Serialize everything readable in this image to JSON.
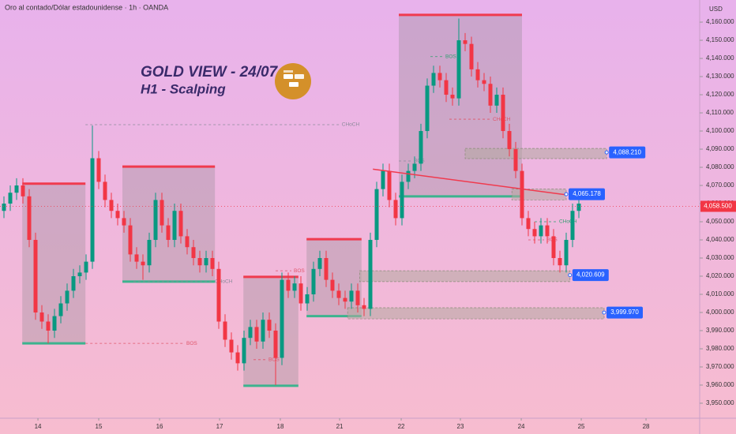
{
  "chart_data": {
    "type": "candlestick",
    "title": "Oro al contado/Dólar estadounidense · 1h · OANDA",
    "currency": "USD",
    "up_color": "#089981",
    "down_color": "#f23645",
    "x": [
      0,
      1,
      2,
      3,
      4,
      5,
      6,
      7,
      8,
      9,
      10,
      11,
      12,
      13,
      14,
      15,
      16,
      17,
      18,
      19,
      20,
      21,
      22,
      23,
      24,
      25,
      26,
      27,
      28,
      29,
      30,
      31,
      32,
      33,
      34,
      35,
      36,
      37,
      38,
      39,
      40,
      41,
      42,
      43,
      44,
      45,
      46,
      47,
      48,
      49,
      50,
      51,
      52,
      53,
      54,
      55,
      56,
      57,
      58,
      59,
      60,
      61,
      62,
      63,
      64,
      65,
      66,
      67,
      68,
      69,
      70,
      71,
      72,
      73,
      74,
      75,
      76,
      77,
      78,
      79,
      80,
      81,
      82,
      83,
      84,
      85,
      86,
      87,
      88,
      89,
      90,
      91
    ],
    "open": [
      4056,
      4060,
      4066,
      4070,
      4064,
      4040,
      4000,
      3995,
      3990,
      3998,
      4005,
      4012,
      4020,
      4022,
      4028,
      4085,
      4072,
      4062,
      4056,
      4052,
      4048,
      4032,
      4028,
      4026,
      4040,
      4062,
      4048,
      4040,
      4056,
      4042,
      4036,
      4030,
      4026,
      4030,
      4024,
      3995,
      3985,
      3978,
      3972,
      3986,
      3992,
      3984,
      3996,
      3990,
      3975,
      4018,
      4012,
      4016,
      4005,
      4010,
      4024,
      4030,
      4018,
      4012,
      4008,
      4006,
      4012,
      4004,
      4002,
      4040,
      4068,
      4078,
      4062,
      4052,
      4072,
      4078,
      4082,
      4100,
      4125,
      4132,
      4128,
      4120,
      4118,
      4150,
      4148,
      4134,
      4128,
      4126,
      4114,
      4120,
      4100,
      4090,
      4078,
      4052,
      4046,
      4042,
      4048,
      4042,
      4030,
      4026,
      4040,
      4056
    ],
    "high": [
      4064,
      4070,
      4074,
      4074,
      4068,
      4044,
      4004,
      3999,
      4002,
      4009,
      4016,
      4024,
      4026,
      4032,
      4103,
      4089,
      4076,
      4066,
      4060,
      4056,
      4052,
      4036,
      4032,
      4044,
      4066,
      4066,
      4052,
      4060,
      4060,
      4046,
      4040,
      4034,
      4034,
      4034,
      4028,
      3999,
      3989,
      3982,
      3990,
      3996,
      3996,
      4000,
      4000,
      3994,
      4022,
      4022,
      4020,
      4020,
      4014,
      4028,
      4034,
      4034,
      4022,
      4016,
      4012,
      4016,
      4016,
      4008,
      4044,
      4072,
      4082,
      4082,
      4066,
      4076,
      4082,
      4086,
      4104,
      4129,
      4136,
      4136,
      4132,
      4124,
      4162,
      4154,
      4152,
      4138,
      4132,
      4130,
      4124,
      4124,
      4104,
      4094,
      4082,
      4056,
      4050,
      4052,
      4052,
      4046,
      4034,
      4044,
      4060,
      4064
    ],
    "low": [
      4052,
      4056,
      4062,
      4060,
      4036,
      3996,
      3991,
      3983,
      3986,
      3994,
      4001,
      4008,
      4016,
      4018,
      4024,
      4068,
      4058,
      4052,
      4048,
      4044,
      4028,
      4024,
      4018,
      4022,
      4036,
      4044,
      4036,
      4036,
      4038,
      4032,
      4026,
      4022,
      4022,
      4020,
      3991,
      3981,
      3974,
      3968,
      3968,
      3982,
      3980,
      3980,
      3986,
      3960,
      3971,
      4008,
      4008,
      4001,
      4001,
      4006,
      4020,
      4014,
      4008,
      4004,
      4002,
      4002,
      4000,
      3998,
      3998,
      4036,
      4064,
      4058,
      4048,
      4048,
      4068,
      4074,
      4078,
      4096,
      4121,
      4124,
      4116,
      4114,
      4114,
      4144,
      4130,
      4124,
      4122,
      4110,
      4110,
      4096,
      4086,
      4074,
      4048,
      4042,
      4038,
      4038,
      4038,
      4026,
      4022,
      4022,
      4036,
      4052
    ],
    "close": [
      4060,
      4066,
      4070,
      4064,
      4040,
      4000,
      3995,
      3990,
      3998,
      4005,
      4012,
      4020,
      4022,
      4028,
      4085,
      4072,
      4062,
      4056,
      4052,
      4048,
      4032,
      4028,
      4026,
      4040,
      4062,
      4048,
      4040,
      4056,
      4042,
      4036,
      4030,
      4026,
      4030,
      4024,
      3995,
      3985,
      3978,
      3972,
      3986,
      3992,
      3984,
      3996,
      3990,
      3975,
      4018,
      4012,
      4016,
      4005,
      4010,
      4024,
      4030,
      4018,
      4012,
      4008,
      4006,
      4012,
      4004,
      4002,
      4040,
      4068,
      4078,
      4062,
      4052,
      4072,
      4078,
      4082,
      4100,
      4125,
      4132,
      4128,
      4120,
      4118,
      4150,
      4148,
      4134,
      4128,
      4126,
      4114,
      4120,
      4100,
      4090,
      4078,
      4052,
      4046,
      4042,
      4048,
      4042,
      4030,
      4026,
      4040,
      4056,
      4060
    ],
    "xlim": [
      -0.625,
      110
    ],
    "ylim": [
      3942.6,
      4172.2
    ],
    "xticks": [
      {
        "value": 5.38,
        "label": "14"
      },
      {
        "value": 15,
        "label": "15"
      },
      {
        "value": 24.63,
        "label": "16"
      },
      {
        "value": 34.13,
        "label": "17"
      },
      {
        "value": 43.75,
        "label": "18"
      },
      {
        "value": 53.13,
        "label": "21"
      },
      {
        "value": 62.88,
        "label": "22"
      },
      {
        "value": 72.25,
        "label": "23"
      },
      {
        "value": 81.88,
        "label": "24"
      },
      {
        "value": 91.38,
        "label": "25"
      },
      {
        "value": 101.63,
        "label": "28"
      }
    ],
    "yticks": [
      {
        "value": 3950,
        "label": "3,950.000"
      },
      {
        "value": 3960,
        "label": "3,960.000"
      },
      {
        "value": 3970,
        "label": "3,970.000"
      },
      {
        "value": 3980,
        "label": "3,980.000"
      },
      {
        "value": 3990,
        "label": "3,990.000"
      },
      {
        "value": 4000,
        "label": "4,000.000"
      },
      {
        "value": 4010,
        "label": "4,010.000"
      },
      {
        "value": 4020,
        "label": "4,020.000"
      },
      {
        "value": 4030,
        "label": "4,030.000"
      },
      {
        "value": 4040,
        "label": "4,040.000"
      },
      {
        "value": 4050,
        "label": "4,050.000"
      },
      {
        "value": 4060,
        "label": "4,060.000"
      },
      {
        "value": 4070,
        "label": "4,070.000"
      },
      {
        "value": 4080,
        "label": "4,080.000"
      },
      {
        "value": 4090,
        "label": "4,090.000"
      },
      {
        "value": 4100,
        "label": "4,100.000"
      },
      {
        "value": 4110,
        "label": "4,110.000"
      },
      {
        "value": 4120,
        "label": "4,120.000"
      },
      {
        "value": 4130,
        "label": "4,130.000"
      },
      {
        "value": 4140,
        "label": "4,140.000"
      },
      {
        "value": 4150,
        "label": "4,150.000"
      },
      {
        "value": 4160,
        "label": "4,160.000"
      }
    ],
    "headline": [
      "GOLD VIEW - 24/07",
      "H1 - Scalping"
    ],
    "boxes": [
      {
        "x": [
          2.9,
          12.9
        ],
        "y": [
          3983,
          4071
        ]
      },
      {
        "x": [
          18.75,
          33.4
        ],
        "y": [
          4017,
          4080.4
        ]
      },
      {
        "x": [
          37.9,
          46.6
        ],
        "y": [
          3959.6,
          4019.6
        ]
      },
      {
        "x": [
          47.9,
          56.6
        ],
        "y": [
          3998,
          4040.4
        ]
      },
      {
        "x": [
          62.5,
          82
        ],
        "y": [
          4064,
          4164
        ]
      }
    ],
    "levels": [
      {
        "value": 4088.21,
        "label": "4,088.210",
        "x": [
          73,
          95.4
        ],
        "band": [
          4084.8,
          4090.4
        ]
      },
      {
        "value": 4065.178,
        "label": "4,065.178",
        "x": [
          80.4,
          89
        ],
        "band": [
          4062,
          4068
        ]
      },
      {
        "value": 4020.609,
        "label": "4,020.609",
        "x": [
          56.3,
          89.6
        ],
        "band": [
          4017,
          4023
        ]
      },
      {
        "value": 3999.97,
        "label": "3,999.970",
        "x": [
          54.4,
          95
        ],
        "band": [
          3996.5,
          4002.6
        ]
      }
    ],
    "markers": [
      {
        "text": "CHoCH",
        "x": [
          12.9,
          53.1
        ],
        "y": 4103.5,
        "color": "#8a8a9a"
      },
      {
        "text": "BOS",
        "x": [
          12.9,
          28.5
        ],
        "y": 3983,
        "color": "#e0556a"
      },
      {
        "text": "CHoCH",
        "x": [
          20.5,
          33
        ],
        "y": 4017,
        "color": "#8a8a9a"
      },
      {
        "text": "BOS",
        "x": [
          43,
          45.5
        ],
        "y": 4023,
        "color": "#e0556a"
      },
      {
        "text": "BOS",
        "x": [
          62.5,
          64.5
        ],
        "y": 4083.5,
        "color": "#8a8a9a"
      },
      {
        "text": "BOS",
        "x": [
          67.5,
          69.5
        ],
        "y": 4141,
        "color": "#2e9e6e"
      },
      {
        "text": "CHoCH",
        "x": [
          70.5,
          77
        ],
        "y": 4106.5,
        "color": "#e0556a"
      },
      {
        "text": "CHoCH",
        "x": [
          84,
          87.5
        ],
        "y": 4050,
        "color": "#2e9e6e"
      },
      {
        "text": "BOS",
        "x": [
          83,
          85.5
        ],
        "y": 4040,
        "color": "#e0556a"
      },
      {
        "text": "BOS",
        "x": [
          39.5,
          41.5
        ],
        "y": 3974,
        "color": "#e0556a"
      }
    ],
    "trendline": {
      "x": [
        58.4,
        89.1
      ],
      "y": [
        4079,
        4064.8
      ]
    },
    "current": {
      "value": 4058.5,
      "label": "4,058.500"
    }
  }
}
